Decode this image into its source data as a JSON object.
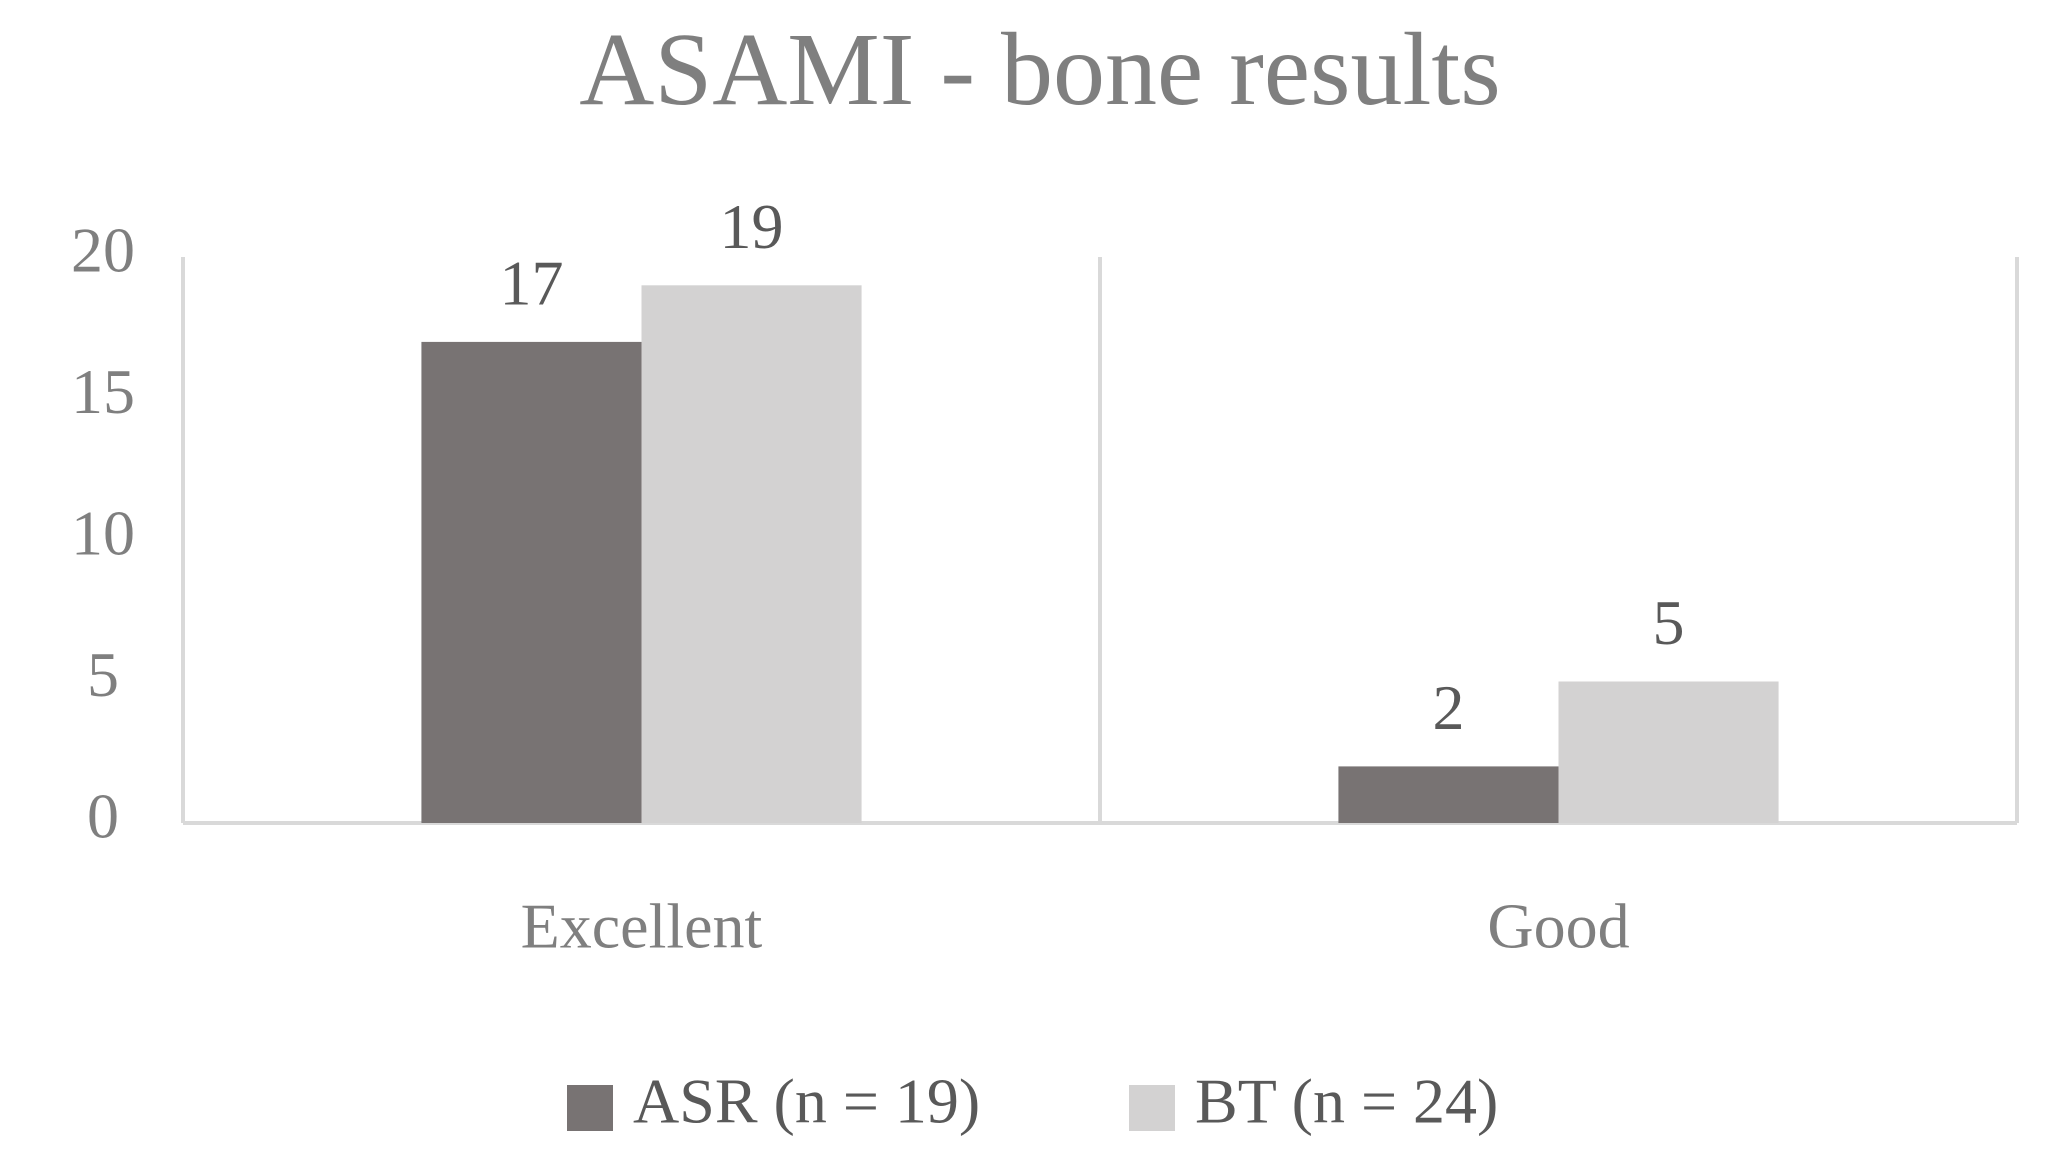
{
  "chart_data": {
    "type": "bar",
    "title": "ASAMI - bone results",
    "categories": [
      "Excellent",
      "Good"
    ],
    "series": [
      {
        "name": "ASR (n = 19)",
        "color": "#787373",
        "values": [
          17,
          2
        ]
      },
      {
        "name": "BT (n = 24)",
        "color": "#d3d2d2",
        "values": [
          19,
          5
        ]
      }
    ],
    "ylim": [
      0,
      20
    ],
    "yticks": [
      0,
      5,
      10,
      15,
      20
    ],
    "grid": false,
    "legend": "bottom"
  }
}
